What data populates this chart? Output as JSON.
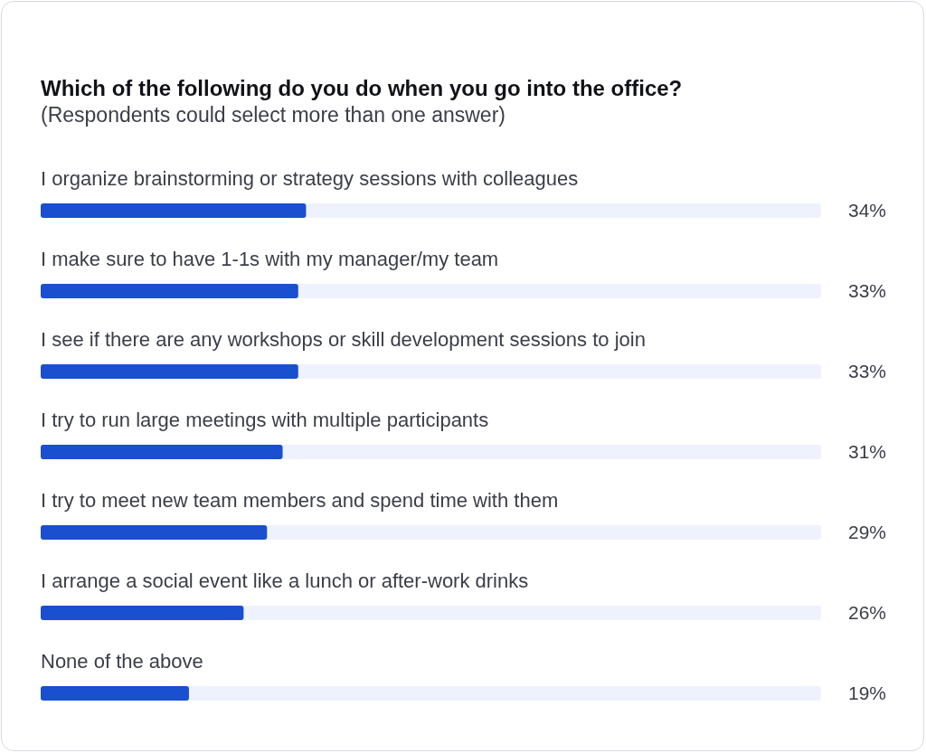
{
  "chart_data": {
    "type": "bar",
    "orientation": "horizontal",
    "title": "Which of the following do you do when you go into the office?",
    "subtitle": "(Respondents could select more than one answer)",
    "categories": [
      "I organize brainstorming or strategy sessions with colleagues",
      "I make sure to have 1-1s with my manager/my team",
      "I see if there are any workshops or skill development sessions to join",
      "I try to run large meetings with multiple participants",
      "I try to meet new team members and spend time with them",
      "I arrange a social event like a lunch or after-work drinks",
      "None of the above"
    ],
    "values": [
      34,
      33,
      33,
      31,
      29,
      26,
      19
    ],
    "value_labels": [
      "34%",
      "33%",
      "33%",
      "31%",
      "29%",
      "26%",
      "19%"
    ],
    "color": "#1a4fd0",
    "xlim": [
      0,
      100
    ],
    "tick_labels": "y"
  }
}
